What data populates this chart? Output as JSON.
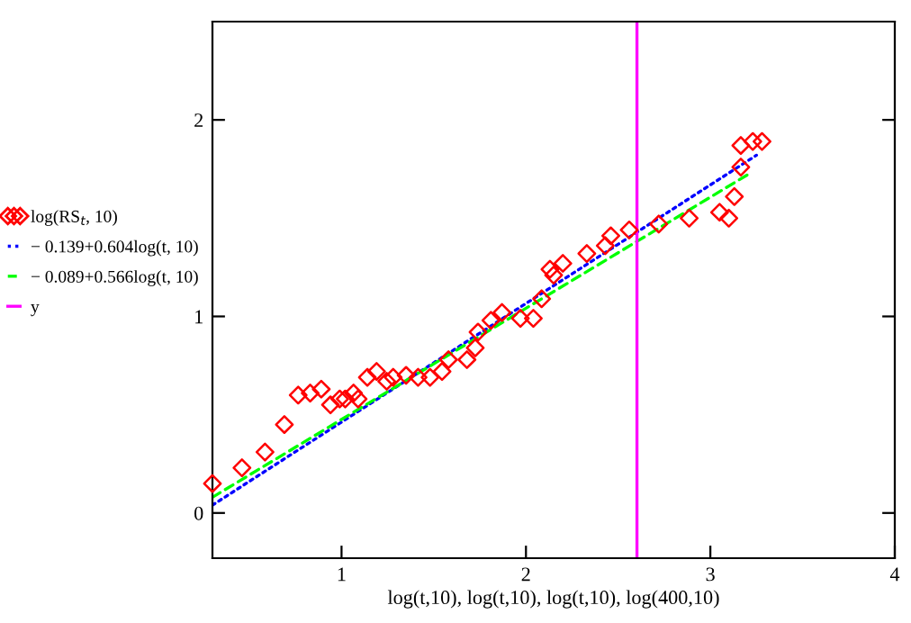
{
  "chart_data": {
    "type": "scatter",
    "xlabel": "log(t,10), log(t,10), log(t,10), log(400,10)",
    "xlim": [
      0.3,
      4
    ],
    "ylim": [
      -0.23,
      2.5
    ],
    "xticks": [
      1,
      2,
      3,
      4
    ],
    "yticks": [
      0,
      1,
      2
    ],
    "grid": false,
    "legend": "left",
    "series": [
      {
        "name": "log(RS$_{t}$, 10)",
        "color": "#ff0000",
        "marker": "diamond",
        "x": [
          0.3,
          0.46,
          0.585,
          0.69,
          0.765,
          0.83,
          0.89,
          0.94,
          0.99,
          1.02,
          1.065,
          1.09,
          1.14,
          1.19,
          1.245,
          1.28,
          1.35,
          1.415,
          1.48,
          1.545,
          1.58,
          1.68,
          1.725,
          1.74,
          1.81,
          1.87,
          1.97,
          2.04,
          2.085,
          2.13,
          2.15,
          2.2,
          2.33,
          2.43,
          2.46,
          2.56,
          2.72,
          2.885,
          3.05,
          3.1,
          3.13,
          3.165,
          3.165,
          3.23,
          3.28
        ],
        "values": [
          0.15,
          0.23,
          0.31,
          0.45,
          0.6,
          0.61,
          0.63,
          0.55,
          0.58,
          0.58,
          0.61,
          0.58,
          0.69,
          0.72,
          0.67,
          0.69,
          0.7,
          0.69,
          0.69,
          0.72,
          0.78,
          0.78,
          0.84,
          0.92,
          0.98,
          1.02,
          0.99,
          0.99,
          1.09,
          1.24,
          1.21,
          1.27,
          1.32,
          1.36,
          1.41,
          1.44,
          1.47,
          1.5,
          1.53,
          1.5,
          1.61,
          1.76,
          1.87,
          1.89,
          1.89
        ]
      },
      {
        "name": "− 0.139+0.604log(t, 10)",
        "type": "line",
        "color": "#0000ff",
        "line_style": "dotted",
        "marker": "none",
        "x": [
          0.3,
          3.25
        ],
        "values": [
          0.04,
          1.82
        ]
      },
      {
        "name": "− 0.089+0.566log(t, 10)",
        "type": "line",
        "color": "#00ff00",
        "line_style": "dashed",
        "marker": "none",
        "x": [
          0.3,
          3.2
        ],
        "values": [
          0.08,
          1.72
        ]
      },
      {
        "name": "y",
        "type": "line",
        "color": "#ff00ff",
        "line_style": "solid",
        "marker": "none",
        "x": [
          2.602,
          2.602
        ],
        "values": [
          -0.23,
          2.5
        ]
      }
    ]
  }
}
